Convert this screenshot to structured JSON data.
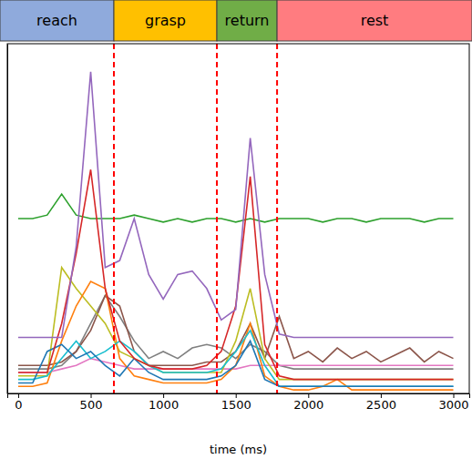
{
  "chart_data": {
    "type": "line",
    "x_label": "time (ms)",
    "x": [
      0,
      100,
      200,
      300,
      400,
      500,
      600,
      700,
      800,
      900,
      1000,
      1100,
      1200,
      1300,
      1400,
      1500,
      1600,
      1700,
      1800,
      1900,
      2000,
      2100,
      2200,
      2300,
      2400,
      2500,
      2600,
      2700,
      2800,
      2900,
      3000
    ],
    "xlim": [
      -75,
      3110
    ],
    "xticks": [
      0,
      500,
      1000,
      1500,
      2000,
      2500,
      3000
    ],
    "ylim": [
      0,
      1
    ],
    "tick_labels": "x",
    "grid": false,
    "phases": [
      {
        "label": "reach",
        "color": "#8faadc"
      },
      {
        "label": "grasp",
        "color": "#ffc000"
      },
      {
        "label": "return",
        "color": "#70ad47"
      },
      {
        "label": "rest",
        "color": "#ff7c80"
      }
    ],
    "boundaries": {
      "values": [
        660,
        1370,
        1785
      ],
      "color": "#ff0000",
      "line_style": "dashed"
    },
    "series": [
      {
        "color": "#2ca02c",
        "values": [
          0.5,
          0.5,
          0.51,
          0.57,
          0.51,
          0.5,
          0.5,
          0.5,
          0.51,
          0.5,
          0.49,
          0.5,
          0.49,
          0.5,
          0.5,
          0.49,
          0.5,
          0.49,
          0.5,
          0.5,
          0.5,
          0.49,
          0.5,
          0.5,
          0.49,
          0.5,
          0.5,
          0.5,
          0.49,
          0.5,
          0.5
        ]
      },
      {
        "color": "#7f7f7f",
        "values": [
          0.07,
          0.07,
          0.07,
          0.08,
          0.12,
          0.2,
          0.28,
          0.22,
          0.15,
          0.1,
          0.12,
          0.1,
          0.13,
          0.14,
          0.13,
          0.1,
          0.14,
          0.12,
          0.08,
          0.07,
          0.07,
          0.07,
          0.07,
          0.07,
          0.07,
          0.07,
          0.07,
          0.07,
          0.07,
          0.07,
          0.07
        ]
      },
      {
        "color": "#e377c2",
        "values": [
          0.06,
          0.06,
          0.06,
          0.07,
          0.08,
          0.1,
          0.09,
          0.08,
          0.07,
          0.07,
          0.07,
          0.07,
          0.07,
          0.07,
          0.07,
          0.07,
          0.08,
          0.08,
          0.08,
          0.08,
          0.08,
          0.08,
          0.08,
          0.08,
          0.08,
          0.08,
          0.08,
          0.08,
          0.08,
          0.08,
          0.08
        ]
      },
      {
        "color": "#8c564b",
        "values": [
          0.08,
          0.08,
          0.08,
          0.09,
          0.12,
          0.18,
          0.28,
          0.25,
          0.12,
          0.08,
          0.08,
          0.08,
          0.08,
          0.09,
          0.09,
          0.12,
          0.2,
          0.1,
          0.22,
          0.1,
          0.12,
          0.09,
          0.13,
          0.1,
          0.12,
          0.09,
          0.11,
          0.13,
          0.09,
          0.12,
          0.1
        ]
      },
      {
        "color": "#bcbd22",
        "values": [
          0.05,
          0.05,
          0.05,
          0.36,
          0.3,
          0.25,
          0.2,
          0.12,
          0.1,
          0.08,
          0.06,
          0.06,
          0.06,
          0.06,
          0.06,
          0.15,
          0.3,
          0.1,
          0.04,
          0.04,
          0.04,
          0.04,
          0.04,
          0.04,
          0.04,
          0.04,
          0.04,
          0.04,
          0.04,
          0.04,
          0.04
        ]
      },
      {
        "color": "#ff7f0e",
        "values": [
          0.02,
          0.02,
          0.03,
          0.15,
          0.25,
          0.32,
          0.3,
          0.1,
          0.05,
          0.04,
          0.03,
          0.03,
          0.03,
          0.03,
          0.04,
          0.08,
          0.2,
          0.05,
          0.02,
          0.01,
          0.01,
          0.02,
          0.04,
          0.01,
          0.01,
          0.01,
          0.01,
          0.01,
          0.01,
          0.01,
          0.01
        ]
      },
      {
        "color": "#17becf",
        "values": [
          0.04,
          0.04,
          0.05,
          0.1,
          0.15,
          0.1,
          0.12,
          0.15,
          0.12,
          0.08,
          0.06,
          0.06,
          0.06,
          0.06,
          0.07,
          0.12,
          0.18,
          0.08,
          0.02,
          0.02,
          0.02,
          0.02,
          0.02,
          0.02,
          0.02,
          0.02,
          0.02,
          0.02,
          0.02,
          0.02,
          0.02
        ]
      },
      {
        "color": "#1f77b4",
        "values": [
          0.03,
          0.03,
          0.12,
          0.14,
          0.1,
          0.12,
          0.08,
          0.05,
          0.1,
          0.06,
          0.04,
          0.04,
          0.04,
          0.04,
          0.05,
          0.08,
          0.15,
          0.04,
          0.02,
          0.02,
          0.02,
          0.02,
          0.02,
          0.02,
          0.02,
          0.02,
          0.02,
          0.02,
          0.02,
          0.02,
          0.02
        ]
      },
      {
        "color": "#d62728",
        "values": [
          0.06,
          0.06,
          0.06,
          0.2,
          0.4,
          0.64,
          0.3,
          0.15,
          0.1,
          0.08,
          0.07,
          0.07,
          0.07,
          0.08,
          0.12,
          0.25,
          0.62,
          0.14,
          0.05,
          0.04,
          0.04,
          0.04,
          0.04,
          0.04,
          0.04,
          0.04,
          0.04,
          0.04,
          0.04,
          0.04,
          0.04
        ]
      },
      {
        "color": "#9467bd",
        "values": [
          0.16,
          0.16,
          0.16,
          0.16,
          0.42,
          0.92,
          0.36,
          0.38,
          0.5,
          0.34,
          0.27,
          0.34,
          0.35,
          0.3,
          0.21,
          0.24,
          0.73,
          0.34,
          0.17,
          0.16,
          0.16,
          0.16,
          0.16,
          0.16,
          0.16,
          0.16,
          0.16,
          0.16,
          0.16,
          0.16,
          0.16
        ]
      }
    ]
  }
}
